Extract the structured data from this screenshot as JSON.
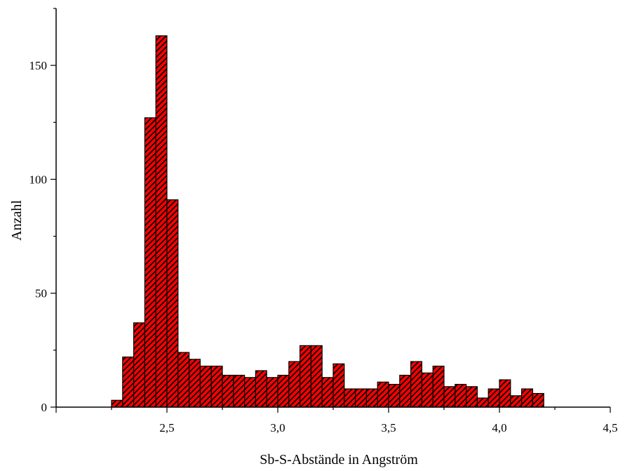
{
  "chart_data": {
    "type": "bar",
    "xlabel": "Sb-S-Abstände in Angström",
    "ylabel": "Anzahl",
    "xlim": [
      2.0,
      4.5
    ],
    "ylim": [
      0,
      175
    ],
    "xticks": [
      2.5,
      3.0,
      3.5,
      4.0,
      4.5
    ],
    "xtick_labels": [
      "2,5",
      "3,0",
      "3,5",
      "4,0",
      "4,5"
    ],
    "yticks": [
      0,
      50,
      100,
      150
    ],
    "ytick_labels": [
      "0",
      "50",
      "100",
      "150"
    ],
    "bin_width": 0.05,
    "bin_starts": [
      2.25,
      2.3,
      2.35,
      2.4,
      2.45,
      2.5,
      2.55,
      2.6,
      2.65,
      2.7,
      2.75,
      2.8,
      2.85,
      2.9,
      2.95,
      3.0,
      3.05,
      3.1,
      3.15,
      3.2,
      3.25,
      3.3,
      3.35,
      3.4,
      3.45,
      3.5,
      3.55,
      3.6,
      3.65,
      3.7,
      3.75,
      3.8,
      3.85,
      3.9,
      3.95,
      4.0,
      4.05,
      4.1,
      4.15
    ],
    "values": [
      3,
      22,
      37,
      127,
      163,
      91,
      24,
      21,
      18,
      18,
      14,
      14,
      13,
      16,
      13,
      14,
      20,
      27,
      27,
      13,
      19,
      8,
      8,
      8,
      11,
      10,
      14,
      20,
      15,
      18,
      9,
      10,
      9,
      4,
      8,
      12,
      5,
      8,
      6
    ],
    "colors": {
      "bar_fill": "#ff0000",
      "hatch": "#000000",
      "axis": "#000000"
    },
    "grid": false
  }
}
